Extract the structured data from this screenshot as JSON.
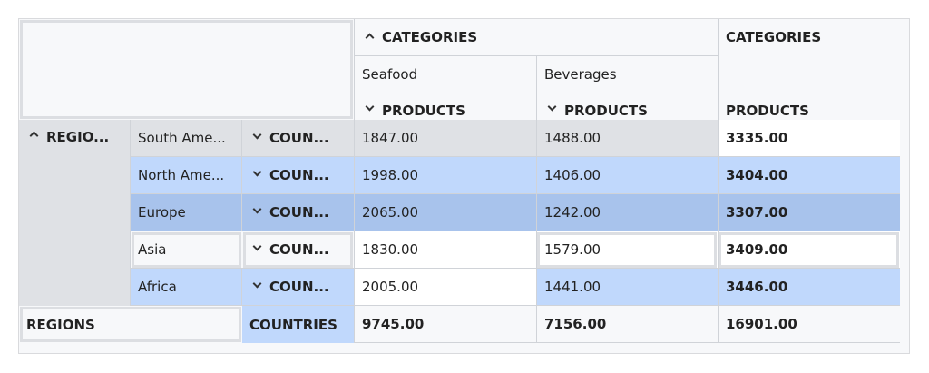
{
  "columns": {
    "group_label": "CATEGORIES",
    "total_group_label": "CATEGORIES",
    "categories": [
      "Seafood",
      "Beverages"
    ],
    "sub_label": "PRODUCTS",
    "total_sub_label": "PRODUCTS"
  },
  "rows": {
    "group_label": "REGIO...",
    "sub_label": "COUN...",
    "items": [
      {
        "region": "South Ame...",
        "seafood": "1847.00",
        "beverages": "1488.00",
        "total": "3335.00"
      },
      {
        "region": "North Ame...",
        "seafood": "1998.00",
        "beverages": "1406.00",
        "total": "3404.00"
      },
      {
        "region": "Europe",
        "seafood": "2065.00",
        "beverages": "1242.00",
        "total": "3307.00"
      },
      {
        "region": "Asia",
        "seafood": "1830.00",
        "beverages": "1579.00",
        "total": "3409.00"
      },
      {
        "region": "Africa",
        "seafood": "2005.00",
        "beverages": "1441.00",
        "total": "3446.00"
      }
    ]
  },
  "totals": {
    "regions_label": "REGIONS",
    "countries_label": "COUNTRIES",
    "seafood": "9745.00",
    "beverages": "7156.00",
    "grand": "16901.00"
  },
  "colors": {
    "row_gray": "#dfe1e5",
    "row_blue": "#c0d8fc",
    "row_blue_dark": "#a8c3ec",
    "row_white": "#ffffff",
    "header_bg": "#f7f8fa",
    "border": "#d0d3d8"
  }
}
